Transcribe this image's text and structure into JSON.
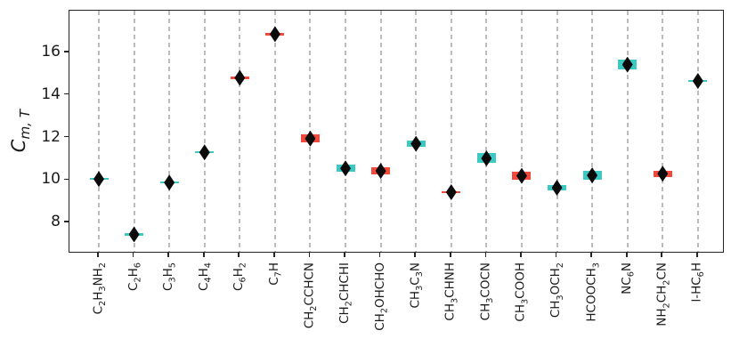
{
  "chart_data": {
    "type": "scatter",
    "title": "",
    "marker": "thin-diamond",
    "ylabel": {
      "base": "C",
      "sub": "m, T"
    },
    "yticks": [
      8,
      10,
      12,
      14,
      16
    ],
    "ylim": [
      6.55,
      17.95
    ],
    "grid": "vertical-dashed",
    "legend": "none",
    "colors": {
      "teal": "#3cc8c3",
      "red": "#f2493d",
      "marker": "#0b0b0b",
      "grid": "#bcbcbc",
      "axis": "#262626",
      "background": "#ffffff"
    },
    "points": [
      {
        "label": "C2H3NH2",
        "value": 10.05,
        "box_color": "teal",
        "box_low": 10.0,
        "box_high": 10.1
      },
      {
        "label": "C2H6",
        "value": 7.45,
        "box_color": "teal",
        "box_low": 7.4,
        "box_high": 7.5
      },
      {
        "label": "C3H5",
        "value": 9.88,
        "box_color": "teal",
        "box_low": 9.83,
        "box_high": 9.93
      },
      {
        "label": "C4H4",
        "value": 11.3,
        "box_color": "teal",
        "box_low": 11.25,
        "box_high": 11.35
      },
      {
        "label": "C6H2",
        "value": 14.8,
        "box_color": "red",
        "box_low": 14.75,
        "box_high": 14.85
      },
      {
        "label": "C7H",
        "value": 16.85,
        "box_color": "red",
        "box_low": 16.8,
        "box_high": 16.9
      },
      {
        "label": "CH2CCHCN",
        "value": 11.95,
        "box_color": "red",
        "box_low": 11.78,
        "box_high": 12.13
      },
      {
        "label": "CH2CHCHI",
        "value": 10.55,
        "box_color": "teal",
        "box_low": 10.38,
        "box_high": 10.72
      },
      {
        "label": "CH2OHCHO",
        "value": 10.43,
        "box_color": "red",
        "box_low": 10.25,
        "box_high": 10.61
      },
      {
        "label": "CH3C3N",
        "value": 11.7,
        "box_color": "teal",
        "box_low": 11.55,
        "box_high": 11.85
      },
      {
        "label": "CH3CHNH",
        "value": 9.43,
        "box_color": "red",
        "box_low": 9.37,
        "box_high": 9.49
      },
      {
        "label": "CH3COCN",
        "value": 11.02,
        "box_color": "teal",
        "box_low": 10.8,
        "box_high": 11.26
      },
      {
        "label": "CH3COOH",
        "value": 10.2,
        "box_color": "red",
        "box_low": 10.0,
        "box_high": 10.4
      },
      {
        "label": "CH3OCH2",
        "value": 9.64,
        "box_color": "teal",
        "box_low": 9.51,
        "box_high": 9.77
      },
      {
        "label": "HCOOCH3",
        "value": 10.22,
        "box_color": "teal",
        "box_low": 10.0,
        "box_high": 10.42
      },
      {
        "label": "NC6N",
        "value": 15.42,
        "box_color": "teal",
        "box_low": 15.18,
        "box_high": 15.66
      },
      {
        "label": "NH2CH2CN",
        "value": 10.3,
        "box_color": "red",
        "box_low": 10.14,
        "box_high": 10.45
      },
      {
        "label": "l-HC6H",
        "value": 14.65,
        "box_color": "teal",
        "box_low": 14.6,
        "box_high": 14.7
      }
    ]
  }
}
